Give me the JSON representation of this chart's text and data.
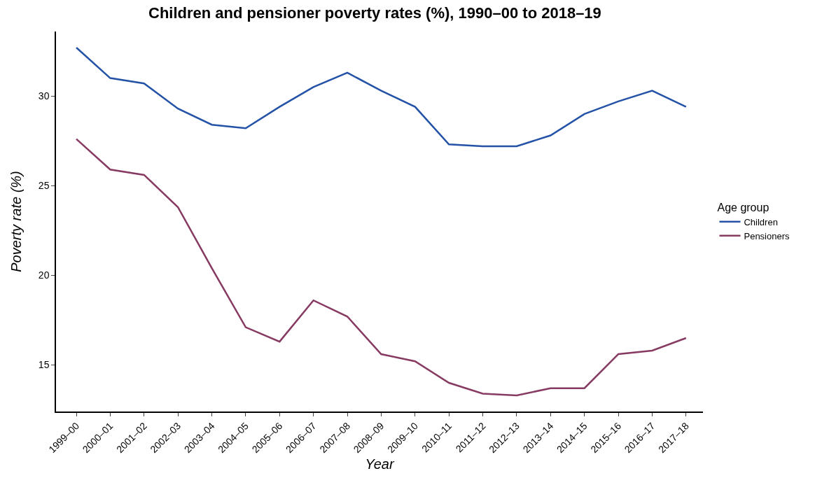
{
  "chart_data": {
    "type": "line",
    "title": "Children and pensioner poverty rates (%), 1990–00 to 2018–19",
    "xlabel": "Year",
    "ylabel": "Poverty rate (%)",
    "legend_title": "Age group",
    "categories": [
      "1999–00",
      "2000–01",
      "2001–02",
      "2002–03",
      "2003–04",
      "2004–05",
      "2005–06",
      "2006–07",
      "2007–08",
      "2008–09",
      "2009–10",
      "2010–11",
      "2011–12",
      "2012–13",
      "2013–14",
      "2014–15",
      "2015–16",
      "2016–17",
      "2017–18"
    ],
    "series": [
      {
        "name": "Children",
        "color": "#2352a6",
        "values": [
          32.7,
          31.0,
          30.7,
          29.3,
          28.4,
          28.2,
          29.4,
          30.5,
          31.3,
          30.3,
          29.4,
          27.3,
          27.2,
          27.2,
          27.8,
          29.0,
          29.7,
          30.3,
          29.4
        ]
      },
      {
        "name": "Pensioners",
        "color": "#873a62",
        "values": [
          27.6,
          25.9,
          25.6,
          23.8,
          20.4,
          17.1,
          16.3,
          18.6,
          17.7,
          15.6,
          15.2,
          14.0,
          13.4,
          13.3,
          13.7,
          13.7,
          15.6,
          15.8,
          16.5
        ]
      }
    ],
    "ylim": [
      12.4,
      33.6
    ],
    "yticks": [
      15,
      20,
      25,
      30
    ],
    "grid": false,
    "legend": "right",
    "marker": "none",
    "line_style": "solid"
  }
}
